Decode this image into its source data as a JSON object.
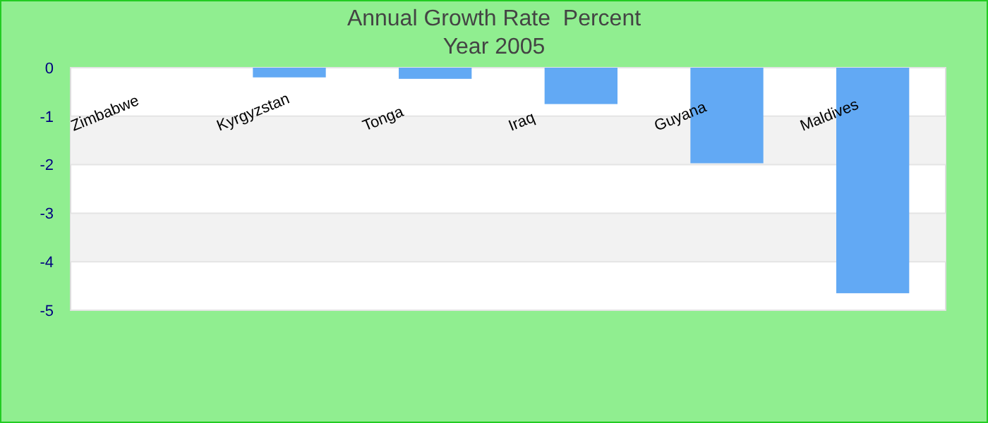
{
  "chart_data": {
    "type": "bar",
    "title": "Annual Growth Rate  Percent",
    "subtitle": "Year 2005",
    "categories": [
      "Zimbabwe",
      "Kyrgyzstan",
      "Tonga",
      "Iraq",
      "Guyana",
      "Maldives"
    ],
    "values": [
      0,
      -0.2,
      -0.23,
      -0.75,
      -1.97,
      -4.65
    ],
    "color": "#62a9f4",
    "ylim": [
      -5,
      0
    ],
    "yticks": [
      0,
      -1,
      -2,
      -3,
      -4,
      -5
    ],
    "grid": "y"
  }
}
